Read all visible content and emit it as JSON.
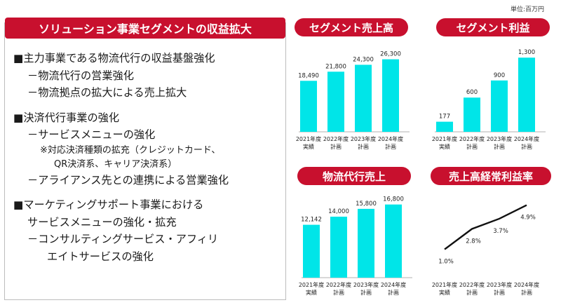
{
  "unit_label": "単位:百万円",
  "left": {
    "title": "ソリューション事業セグメントの収益拡大",
    "lines": [
      {
        "text": "■主力事業である物流代行の収益基盤強化",
        "cls": "b-line"
      },
      {
        "text": "－物流代行の営業強化",
        "cls": "b-line b-sub"
      },
      {
        "text": "－物流拠点の拡大による売上拡大",
        "cls": "b-line b-sub"
      },
      {
        "text": "",
        "cls": "gap"
      },
      {
        "text": "■決済代行事業の強化",
        "cls": "b-line"
      },
      {
        "text": "－サービスメニューの強化",
        "cls": "b-line b-sub"
      },
      {
        "text": "※対応決済種類の拡充（クレジットカード、",
        "cls": "b-note"
      },
      {
        "text": "QR決済系、キャリア決済系）",
        "cls": "b-note2"
      },
      {
        "text": "－アライアンス先との連携による営業強化",
        "cls": "b-line b-sub"
      },
      {
        "text": "",
        "cls": "gap"
      },
      {
        "text": "■マーケティングサポート事業における",
        "cls": "b-line"
      },
      {
        "text": "サービスメニューの強化・拡充",
        "cls": "b-line b-sub"
      },
      {
        "text": "－コンサルティングサービス・アフィリ",
        "cls": "b-line b-sub"
      },
      {
        "text": "エイトサービスの強化",
        "cls": "b-line b-sub2"
      }
    ]
  },
  "colors": {
    "accent": "#c8102e",
    "bar": "#00e5e8",
    "line": "#111111"
  },
  "chart_data": [
    {
      "type": "bar",
      "title": "セグメント売上高",
      "categories": [
        [
          "2021年度",
          "実績"
        ],
        [
          "2022年度",
          "計画"
        ],
        [
          "2023年度",
          "計画"
        ],
        [
          "2024年度",
          "計画"
        ]
      ],
      "values": [
        18490,
        21800,
        24300,
        26300
      ],
      "labels": [
        "18,490",
        "21,800",
        "24,300",
        "26,300"
      ],
      "ylim": [
        0,
        30000
      ]
    },
    {
      "type": "bar",
      "title": "セグメント利益",
      "categories": [
        [
          "2021年度",
          "実績"
        ],
        [
          "2022年度",
          "計画"
        ],
        [
          "2023年度",
          "計画"
        ],
        [
          "2024年度",
          "計画"
        ]
      ],
      "values": [
        177,
        600,
        900,
        1300
      ],
      "labels": [
        "177",
        "600",
        "900",
        "1,300"
      ],
      "ylim": [
        0,
        1450
      ]
    },
    {
      "type": "bar",
      "title": "物流代行売上",
      "categories": [
        [
          "2021年度",
          "実績"
        ],
        [
          "2022年度",
          "計画"
        ],
        [
          "2023年度",
          "計画"
        ],
        [
          "2024年度",
          "計画"
        ]
      ],
      "values": [
        12142,
        14000,
        15800,
        16800
      ],
      "labels": [
        "12,142",
        "14,000",
        "15,800",
        "16,800"
      ],
      "ylim": [
        0,
        19000
      ]
    },
    {
      "type": "line",
      "title": "売上高経常利益率",
      "categories": [
        [
          "2021年度",
          "実績"
        ],
        [
          "2022年度",
          "計画"
        ],
        [
          "2023年度",
          "計画"
        ],
        [
          "2024年度",
          "計画"
        ]
      ],
      "values": [
        1.0,
        2.8,
        3.7,
        4.9
      ],
      "labels": [
        "1.0%",
        "2.8%",
        "3.7%",
        "4.9%"
      ],
      "ylim": [
        -1.5,
        5.8
      ]
    }
  ]
}
